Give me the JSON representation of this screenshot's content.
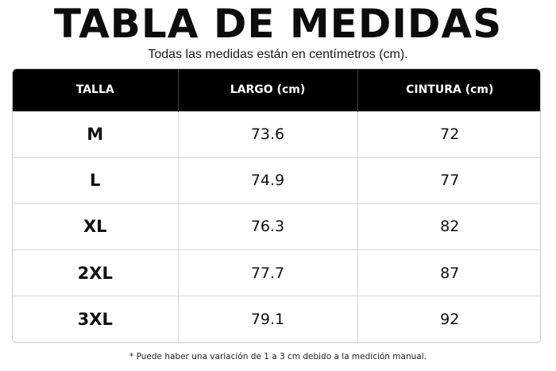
{
  "title": "TABLA DE MEDIDAS",
  "subtitle": "Todas las medidas están en centímetros (cm).",
  "table": {
    "headers": [
      "TALLA",
      "LARGO (cm)",
      "CINTURA (cm)"
    ],
    "rows": [
      [
        "M",
        "73.6",
        "72"
      ],
      [
        "L",
        "74.9",
        "77"
      ],
      [
        "XL",
        "76.3",
        "82"
      ],
      [
        "2XL",
        "77.7",
        "87"
      ],
      [
        "3XL",
        "79.1",
        "92"
      ]
    ]
  },
  "footnote": "* Puede haber una variación de 1 a 3 cm debido a la medición manual.",
  "colors": {
    "header_bg": "#000000",
    "header_text": "#ffffff",
    "grid": "#d6d6d6"
  }
}
